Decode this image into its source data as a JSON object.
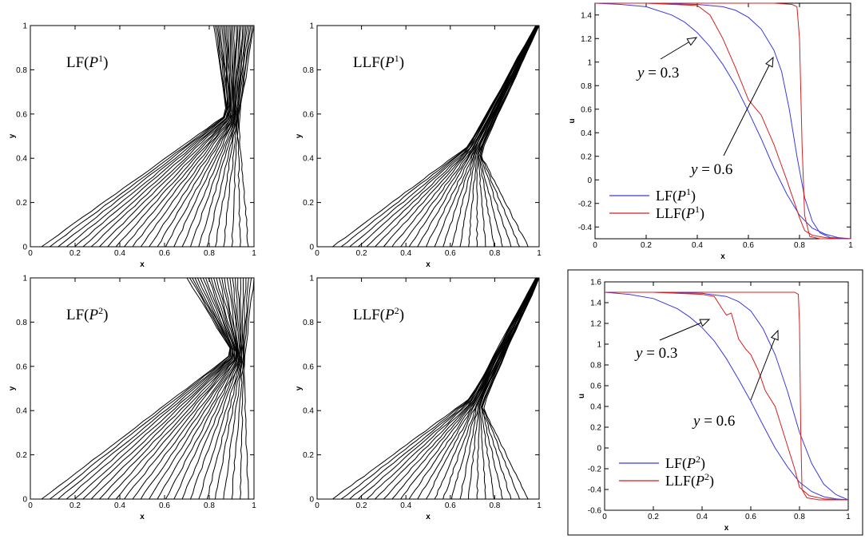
{
  "chart_data": [
    {
      "type": "contour",
      "label": "LF(P^1)",
      "label_main": "LF(",
      "label_var": "P",
      "label_sup": "1",
      "label_end": ")",
      "xlabel": "x",
      "ylabel": "y",
      "xlim": [
        0,
        1
      ],
      "ylim": [
        0,
        1
      ],
      "xticks": [
        "0",
        "0.2",
        "0.4",
        "0.6",
        "0.8",
        "1"
      ],
      "yticks": [
        "0",
        "0.2",
        "0.4",
        "0.6",
        "0.8",
        "1"
      ],
      "line_color": "#000000",
      "contours": {
        "count": 26,
        "foot_start": 0.05,
        "foot_end": 0.975,
        "apex": [
          0.905,
          0.58
        ],
        "top_end": [
          0.82,
          0.985
        ]
      }
    },
    {
      "type": "contour",
      "label": "LLF(P^1)",
      "label_main": "LLF(",
      "label_var": "P",
      "label_sup": "1",
      "label_end": ")",
      "xlabel": "x",
      "ylabel": "y",
      "xlim": [
        0,
        1
      ],
      "ylim": [
        0,
        1
      ],
      "xticks": [
        "0",
        "0.2",
        "0.4",
        "0.6",
        "0.8",
        "1"
      ],
      "yticks": [
        "0",
        "0.2",
        "0.4",
        "0.6",
        "0.8",
        "1"
      ],
      "line_color": "#000000",
      "contours": {
        "count": 24,
        "foot_start": 0.07,
        "foot_end": 0.95,
        "apex": [
          0.71,
          0.44
        ],
        "top_end": [
          0.985,
          0.985
        ]
      }
    },
    {
      "type": "line",
      "xlabel": "x",
      "ylabel": "u",
      "xlim": [
        0,
        1
      ],
      "ylim": [
        -0.5,
        1.5
      ],
      "xticks": [
        "0",
        "0.2",
        "0.4",
        "0.6",
        "0.8",
        "1"
      ],
      "yticks": [
        "-0.4",
        "-0.2",
        "0",
        "0.2",
        "0.4",
        "0.6",
        "0.8",
        "1",
        "1.2",
        "1.4"
      ],
      "series": [
        {
          "name": "LF(P^1)",
          "legend_main": "LF(",
          "legend_var": "P",
          "legend_sup": "1",
          "legend_end": ")",
          "color": "#3a3ae0",
          "curves": [
            {
              "x": [
                0,
                0.1,
                0.2,
                0.3,
                0.35,
                0.4,
                0.45,
                0.5,
                0.55,
                0.6,
                0.65,
                0.7,
                0.75,
                0.8,
                0.85,
                0.9,
                0.95,
                1.0
              ],
              "y": [
                1.5,
                1.49,
                1.47,
                1.4,
                1.34,
                1.25,
                1.13,
                0.98,
                0.8,
                0.58,
                0.35,
                0.1,
                -0.12,
                -0.3,
                -0.41,
                -0.46,
                -0.49,
                -0.5
              ]
            },
            {
              "x": [
                0,
                0.2,
                0.4,
                0.5,
                0.55,
                0.6,
                0.65,
                0.7,
                0.73,
                0.76,
                0.79,
                0.82,
                0.85,
                0.88,
                0.92,
                1.0
              ],
              "y": [
                1.5,
                1.5,
                1.49,
                1.47,
                1.44,
                1.38,
                1.28,
                1.1,
                0.92,
                0.6,
                0.2,
                -0.15,
                -0.35,
                -0.45,
                -0.49,
                -0.5
              ]
            }
          ]
        },
        {
          "name": "LLF(P^1)",
          "legend_main": "LLF(",
          "legend_var": "P",
          "legend_sup": "1",
          "legend_end": ")",
          "color": "#d42020",
          "curves": [
            {
              "x": [
                0,
                0.2,
                0.4,
                0.45,
                0.5,
                0.55,
                0.6,
                0.65,
                0.7,
                0.75,
                0.8,
                0.82,
                0.85,
                0.9,
                0.95,
                1.0
              ],
              "y": [
                1.5,
                1.5,
                1.48,
                1.4,
                1.2,
                0.95,
                0.68,
                0.55,
                0.3,
                0.0,
                -0.32,
                -0.43,
                -0.47,
                -0.49,
                -0.5,
                -0.5
              ]
            },
            {
              "x": [
                0,
                0.4,
                0.6,
                0.7,
                0.77,
                0.79,
                0.8,
                0.81,
                0.82,
                0.84,
                0.88,
                1.0
              ],
              "y": [
                1.5,
                1.5,
                1.5,
                1.5,
                1.49,
                1.47,
                1.2,
                0.3,
                -0.3,
                -0.48,
                -0.5,
                -0.5
              ]
            }
          ]
        }
      ],
      "annotations": [
        {
          "text": "y = 0.3",
          "text_var": "y",
          "text_rest": " = 0.3"
        },
        {
          "text": "y = 0.6",
          "text_var": "y",
          "text_rest": " = 0.6"
        }
      ],
      "legend_position": "bottom-left"
    },
    {
      "type": "contour",
      "label": "LF(P^2)",
      "label_main": "LF(",
      "label_var": "P",
      "label_sup": "2",
      "label_end": ")",
      "xlabel": "x",
      "ylabel": "y",
      "xlim": [
        0,
        1
      ],
      "ylim": [
        0,
        1
      ],
      "xticks": [
        "0",
        "0.2",
        "0.4",
        "0.6",
        "0.8",
        "1"
      ],
      "yticks": [
        "0",
        "0.2",
        "0.4",
        "0.6",
        "0.8",
        "1"
      ],
      "line_color": "#000000",
      "contours": {
        "count": 26,
        "foot_start": 0.05,
        "foot_end": 0.975,
        "apex": [
          0.93,
          0.64
        ],
        "top_end": [
          0.7,
          0.985
        ]
      }
    },
    {
      "type": "contour",
      "label": "LLF(P^2)",
      "label_main": "LLF(",
      "label_var": "P",
      "label_sup": "2",
      "label_end": ")",
      "xlabel": "x",
      "ylabel": "y",
      "xlim": [
        0,
        1
      ],
      "ylim": [
        0,
        1
      ],
      "xticks": [
        "0",
        "0.2",
        "0.4",
        "0.6",
        "0.8",
        "1"
      ],
      "yticks": [
        "0",
        "0.2",
        "0.4",
        "0.6",
        "0.8",
        "1"
      ],
      "line_color": "#000000",
      "contours": {
        "count": 24,
        "foot_start": 0.07,
        "foot_end": 0.95,
        "apex": [
          0.72,
          0.44
        ],
        "top_end": [
          0.985,
          0.985
        ]
      }
    },
    {
      "type": "line",
      "xlabel": "x",
      "ylabel": "u",
      "xlim": [
        0,
        1
      ],
      "ylim": [
        -0.6,
        1.6
      ],
      "xticks": [
        "0",
        "0.2",
        "0.4",
        "0.6",
        "0.8",
        "1"
      ],
      "yticks": [
        "-0.6",
        "-0.4",
        "-0.2",
        "0",
        "0.2",
        "0.4",
        "0.6",
        "0.8",
        "1",
        "1.2",
        "1.4",
        "1.6"
      ],
      "series": [
        {
          "name": "LF(P^2)",
          "legend_main": "LF(",
          "legend_var": "P",
          "legend_sup": "2",
          "legend_end": ")",
          "color": "#3a3ae0",
          "curves": [
            {
              "x": [
                0,
                0.1,
                0.2,
                0.3,
                0.35,
                0.4,
                0.45,
                0.5,
                0.55,
                0.6,
                0.65,
                0.7,
                0.75,
                0.8,
                0.85,
                0.9,
                0.95,
                1.0
              ],
              "y": [
                1.5,
                1.48,
                1.44,
                1.34,
                1.26,
                1.16,
                1.03,
                0.86,
                0.66,
                0.45,
                0.22,
                0.0,
                -0.18,
                -0.33,
                -0.42,
                -0.47,
                -0.49,
                -0.5
              ]
            },
            {
              "x": [
                0,
                0.2,
                0.4,
                0.5,
                0.55,
                0.6,
                0.65,
                0.7,
                0.75,
                0.8,
                0.85,
                0.9,
                0.95,
                1.0
              ],
              "y": [
                1.5,
                1.5,
                1.49,
                1.46,
                1.41,
                1.32,
                1.15,
                0.9,
                0.55,
                0.15,
                -0.15,
                -0.35,
                -0.45,
                -0.5
              ]
            }
          ]
        },
        {
          "name": "LLF(P^2)",
          "legend_main": "LLF(",
          "legend_var": "P",
          "legend_sup": "2",
          "legend_end": ")",
          "color": "#d42020",
          "curves": [
            {
              "x": [
                0,
                0.2,
                0.4,
                0.45,
                0.48,
                0.5,
                0.52,
                0.55,
                0.58,
                0.6,
                0.63,
                0.66,
                0.7,
                0.74,
                0.78,
                0.8,
                0.84,
                0.9,
                1.0
              ],
              "y": [
                1.5,
                1.5,
                1.48,
                1.46,
                1.35,
                1.28,
                1.3,
                1.05,
                0.95,
                0.9,
                0.75,
                0.55,
                0.4,
                0.1,
                -0.2,
                -0.38,
                -0.46,
                -0.49,
                -0.5
              ]
            },
            {
              "x": [
                0,
                0.4,
                0.6,
                0.7,
                0.78,
                0.795,
                0.8,
                0.805,
                0.81,
                0.83,
                0.88,
                1.0
              ],
              "y": [
                1.5,
                1.5,
                1.5,
                1.5,
                1.5,
                1.48,
                1.2,
                0.2,
                -0.4,
                -0.48,
                -0.5,
                -0.5
              ]
            }
          ]
        }
      ],
      "annotations": [
        {
          "text": "y = 0.3",
          "text_var": "y",
          "text_rest": " = 0.3"
        },
        {
          "text": "y = 0.6",
          "text_var": "y",
          "text_rest": " = 0.6"
        }
      ],
      "legend_position": "bottom-left"
    }
  ]
}
